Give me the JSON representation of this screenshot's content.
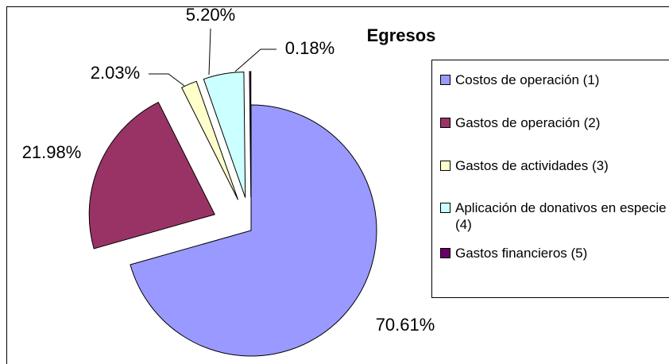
{
  "chart_data": {
    "type": "pie",
    "title": "Egresos",
    "categories": [
      "Costos de operación (1)",
      "Gastos de operación (2)",
      "Gastos de actividades (3)",
      "Aplicación de donativos en especie (4)",
      "Gastos financieros (5)"
    ],
    "values": [
      70.61,
      21.98,
      2.03,
      5.2,
      0.18
    ],
    "value_labels": [
      "70.61%",
      "21.98%",
      "2.03%",
      "5.20%",
      "0.18%"
    ],
    "colors": [
      "#9999ff",
      "#993366",
      "#ffffcc",
      "#ccffff",
      "#660066"
    ],
    "legend": "right"
  }
}
